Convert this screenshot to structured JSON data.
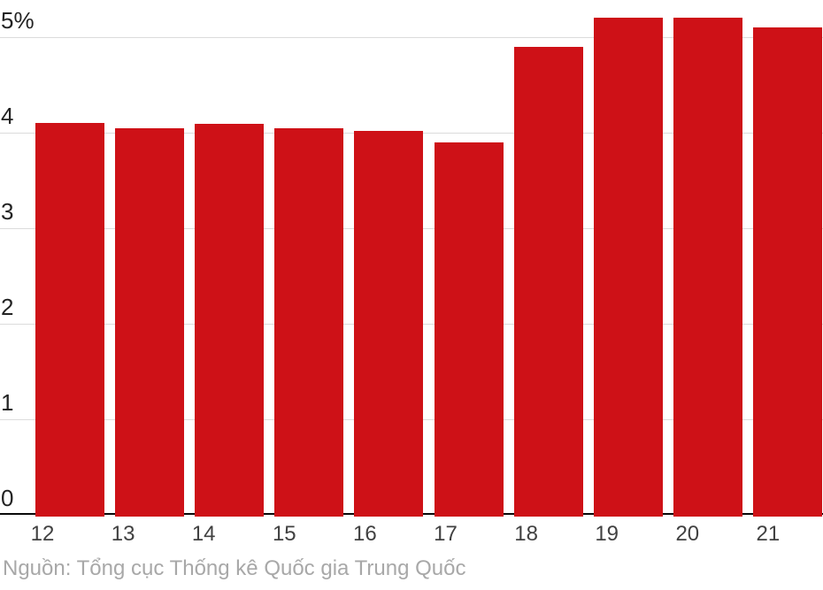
{
  "chart_data": {
    "type": "bar",
    "categories": [
      "12",
      "13",
      "14",
      "15",
      "16",
      "17",
      "18",
      "19",
      "20",
      "21"
    ],
    "values": [
      4.1,
      4.05,
      4.09,
      4.05,
      4.02,
      3.9,
      4.9,
      5.2,
      5.2,
      5.1
    ],
    "title": "",
    "xlabel": "",
    "ylabel": "",
    "ylim": [
      0,
      5.4
    ],
    "yticks": [
      0,
      1,
      2,
      3,
      4,
      5
    ],
    "ytick_labels": [
      "0",
      "1",
      "2",
      "3",
      "4",
      "5%"
    ],
    "grid": true,
    "legend_position": "none",
    "bar_color": "#ce1117",
    "gridline_color": "#dcdcdc",
    "axis_color": "#0a0a0a",
    "ytick_color": "#232323",
    "xtick_color": "#414141"
  },
  "source": {
    "label": "Nguồn: Tổng cục Thống kê Quốc gia Trung Quốc",
    "color": "#a8a8a8"
  }
}
